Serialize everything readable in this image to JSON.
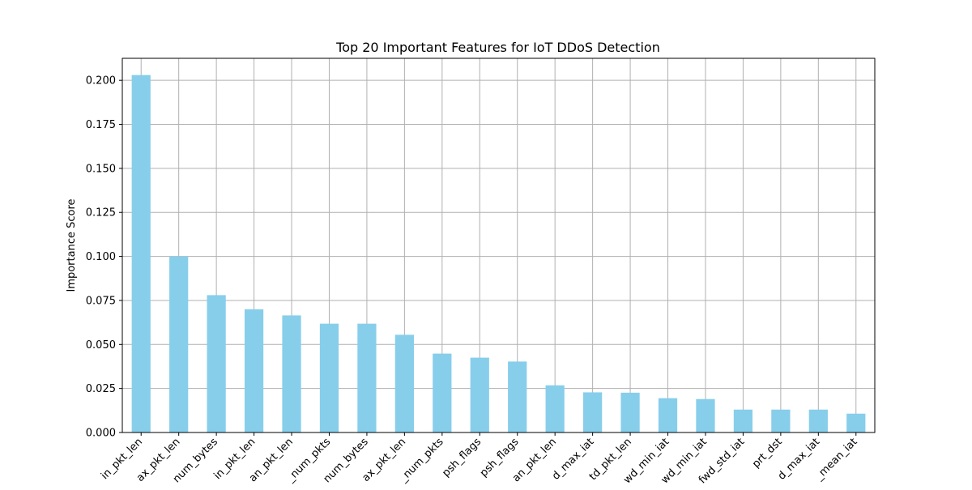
{
  "chart_data": {
    "type": "bar",
    "title": "Top 20 Important Features for IoT DDoS Detection",
    "xlabel": "",
    "ylabel": "Importance Score",
    "ylim": [
      0,
      0.2125
    ],
    "yticks": [
      "0.000",
      "0.025",
      "0.050",
      "0.075",
      "0.100",
      "0.125",
      "0.150",
      "0.175",
      "0.200"
    ],
    "grid": true,
    "bar_color": "#87ceeb",
    "categories": [
      "in_pkt_len",
      "ax_pkt_len",
      "num_bytes",
      "in_pkt_len",
      "an_pkt_len",
      "_num_pkts",
      "num_bytes",
      "ax_pkt_len",
      "_num_pkts",
      "psh_flags",
      "psh_flags",
      "an_pkt_len",
      "d_max_iat",
      "td_pkt_len",
      "wd_min_iat",
      "wd_min_iat",
      "fwd_std_iat",
      "prt_dst",
      "d_max_iat",
      "_mean_iat"
    ],
    "values": [
      0.203,
      0.1,
      0.078,
      0.07,
      0.0665,
      0.0618,
      0.0618,
      0.0555,
      0.0448,
      0.0425,
      0.0403,
      0.0268,
      0.0228,
      0.0226,
      0.0195,
      0.019,
      0.013,
      0.013,
      0.013,
      0.0107
    ]
  }
}
